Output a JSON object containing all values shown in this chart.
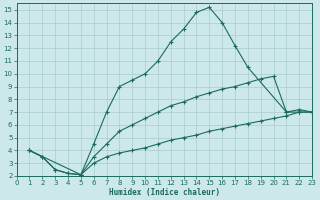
{
  "xlabel": "Humidex (Indice chaleur)",
  "bg_color": "#cce8e8",
  "grid_color": "#aacccc",
  "line_color": "#1a6b5a",
  "xlim": [
    0,
    23
  ],
  "ylim": [
    2,
    15.5
  ],
  "xticks": [
    0,
    1,
    2,
    3,
    4,
    5,
    6,
    7,
    8,
    9,
    10,
    11,
    12,
    13,
    14,
    15,
    16,
    17,
    18,
    19,
    20,
    21,
    22,
    23
  ],
  "yticks": [
    2,
    3,
    4,
    5,
    6,
    7,
    8,
    9,
    10,
    11,
    12,
    13,
    14,
    15
  ],
  "line1_x": [
    1,
    2,
    3,
    4,
    5,
    6,
    7,
    8,
    9,
    10,
    11,
    12,
    13,
    14,
    15,
    16,
    17,
    18,
    21,
    22,
    23
  ],
  "line1_y": [
    4,
    3.5,
    2.5,
    2.2,
    2.1,
    4.5,
    7.0,
    9.0,
    9.5,
    10.0,
    11.0,
    12.5,
    13.5,
    14.8,
    15.2,
    14.0,
    12.2,
    10.5,
    7.0,
    7.0,
    7.0
  ],
  "line2_x": [
    1,
    2,
    3,
    4,
    5,
    6,
    7,
    8,
    9,
    10,
    11,
    12,
    13,
    14,
    15,
    16,
    17,
    18,
    19,
    20,
    21,
    22,
    23
  ],
  "line2_y": [
    4,
    3.5,
    2.5,
    2.2,
    2.1,
    3.5,
    4.5,
    5.5,
    6.0,
    6.5,
    7.0,
    7.5,
    7.8,
    8.2,
    8.5,
    8.8,
    9.0,
    9.3,
    9.6,
    9.8,
    7.0,
    7.2,
    7.0
  ],
  "line3_x": [
    1,
    5,
    6,
    7,
    8,
    9,
    10,
    11,
    12,
    13,
    14,
    15,
    16,
    17,
    18,
    19,
    20,
    21,
    22,
    23
  ],
  "line3_y": [
    4,
    2.1,
    3.0,
    3.5,
    3.8,
    4.0,
    4.2,
    4.5,
    4.8,
    5.0,
    5.2,
    5.5,
    5.7,
    5.9,
    6.1,
    6.3,
    6.5,
    6.7,
    7.0,
    7.0
  ]
}
